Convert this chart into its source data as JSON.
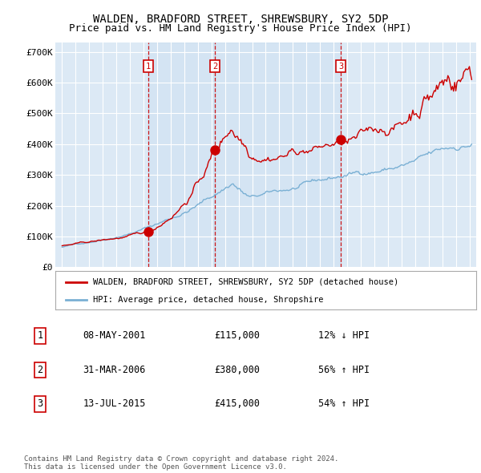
{
  "title": "WALDEN, BRADFORD STREET, SHREWSBURY, SY2 5DP",
  "subtitle": "Price paid vs. HM Land Registry's House Price Index (HPI)",
  "title_fontsize": 10,
  "subtitle_fontsize": 9,
  "background_color": "#ffffff",
  "plot_bg_color": "#dce9f5",
  "grid_color": "#ffffff",
  "red_line_color": "#cc0000",
  "blue_line_color": "#7ab0d4",
  "sale_marker_color": "#cc0000",
  "dashed_line_color": "#cc0000",
  "purchases": [
    {
      "label": "1",
      "date_x": 2001.35,
      "price": 115000,
      "date_str": "08-MAY-2001",
      "pct": "12%",
      "dir": "↓"
    },
    {
      "label": "2",
      "date_x": 2006.25,
      "price": 380000,
      "date_str": "31-MAR-2006",
      "pct": "56%",
      "dir": "↑"
    },
    {
      "label": "3",
      "date_x": 2015.52,
      "price": 415000,
      "date_str": "13-JUL-2015",
      "pct": "54%",
      "dir": "↑"
    }
  ],
  "ylabel_ticks": [
    "£0",
    "£100K",
    "£200K",
    "£300K",
    "£400K",
    "£500K",
    "£600K",
    "£700K"
  ],
  "ytick_values": [
    0,
    100000,
    200000,
    300000,
    400000,
    500000,
    600000,
    700000
  ],
  "xlim": [
    1994.5,
    2025.5
  ],
  "ylim": [
    0,
    730000
  ],
  "legend_line1": "WALDEN, BRADFORD STREET, SHREWSBURY, SY2 5DP (detached house)",
  "legend_line2": "HPI: Average price, detached house, Shropshire",
  "footnote": "Contains HM Land Registry data © Crown copyright and database right 2024.\nThis data is licensed under the Open Government Licence v3.0.",
  "table_rows": [
    [
      "1",
      "08-MAY-2001",
      "£115,000",
      "12% ↓ HPI"
    ],
    [
      "2",
      "31-MAR-2006",
      "£380,000",
      "56% ↑ HPI"
    ],
    [
      "3",
      "13-JUL-2015",
      "£415,000",
      "54% ↑ HPI"
    ]
  ]
}
